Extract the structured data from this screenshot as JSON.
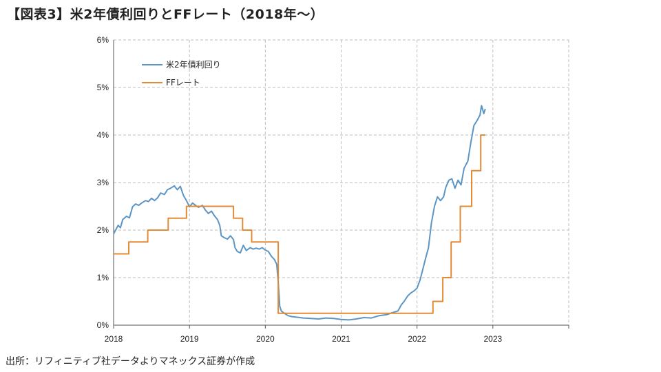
{
  "title": "【図表3】米2年債利回りとFFレート（2018年～）",
  "source": "出所：リフィニティブ社データよりマネックス証券が作成",
  "chart_data": {
    "type": "line",
    "xlim": [
      2018,
      2024
    ],
    "ylim": [
      0,
      6
    ],
    "x_ticks": [
      "2018",
      "2019",
      "2020",
      "2021",
      "2022",
      "2023"
    ],
    "y_ticks": [
      "0%",
      "1%",
      "2%",
      "3%",
      "4%",
      "5%",
      "6%"
    ],
    "grid": true,
    "legend_position": "top-left",
    "series": [
      {
        "name": "米2年債利回り",
        "color": "#5b95c6",
        "points": [
          [
            2018.0,
            1.92
          ],
          [
            2018.03,
            2.01
          ],
          [
            2018.06,
            2.1
          ],
          [
            2018.09,
            2.05
          ],
          [
            2018.12,
            2.22
          ],
          [
            2018.17,
            2.29
          ],
          [
            2018.21,
            2.26
          ],
          [
            2018.25,
            2.49
          ],
          [
            2018.29,
            2.55
          ],
          [
            2018.33,
            2.52
          ],
          [
            2018.37,
            2.57
          ],
          [
            2018.42,
            2.62
          ],
          [
            2018.46,
            2.6
          ],
          [
            2018.5,
            2.67
          ],
          [
            2018.54,
            2.62
          ],
          [
            2018.58,
            2.68
          ],
          [
            2018.62,
            2.78
          ],
          [
            2018.67,
            2.75
          ],
          [
            2018.71,
            2.85
          ],
          [
            2018.75,
            2.88
          ],
          [
            2018.8,
            2.93
          ],
          [
            2018.84,
            2.85
          ],
          [
            2018.88,
            2.92
          ],
          [
            2018.92,
            2.73
          ],
          [
            2018.96,
            2.62
          ],
          [
            2019.0,
            2.49
          ],
          [
            2019.04,
            2.57
          ],
          [
            2019.08,
            2.52
          ],
          [
            2019.12,
            2.48
          ],
          [
            2019.17,
            2.52
          ],
          [
            2019.21,
            2.42
          ],
          [
            2019.25,
            2.35
          ],
          [
            2019.29,
            2.4
          ],
          [
            2019.33,
            2.3
          ],
          [
            2019.37,
            2.22
          ],
          [
            2019.4,
            2.1
          ],
          [
            2019.42,
            1.88
          ],
          [
            2019.46,
            1.84
          ],
          [
            2019.5,
            1.81
          ],
          [
            2019.54,
            1.88
          ],
          [
            2019.58,
            1.8
          ],
          [
            2019.6,
            1.63
          ],
          [
            2019.63,
            1.55
          ],
          [
            2019.67,
            1.52
          ],
          [
            2019.71,
            1.68
          ],
          [
            2019.75,
            1.57
          ],
          [
            2019.8,
            1.63
          ],
          [
            2019.84,
            1.6
          ],
          [
            2019.88,
            1.62
          ],
          [
            2019.92,
            1.6
          ],
          [
            2019.96,
            1.63
          ],
          [
            2020.0,
            1.58
          ],
          [
            2020.04,
            1.55
          ],
          [
            2020.08,
            1.45
          ],
          [
            2020.12,
            1.38
          ],
          [
            2020.15,
            1.28
          ],
          [
            2020.17,
            0.9
          ],
          [
            2020.19,
            0.4
          ],
          [
            2020.21,
            0.3
          ],
          [
            2020.25,
            0.25
          ],
          [
            2020.3,
            0.2
          ],
          [
            2020.35,
            0.18
          ],
          [
            2020.4,
            0.17
          ],
          [
            2020.5,
            0.15
          ],
          [
            2020.6,
            0.14
          ],
          [
            2020.7,
            0.13
          ],
          [
            2020.8,
            0.15
          ],
          [
            2020.9,
            0.14
          ],
          [
            2021.0,
            0.12
          ],
          [
            2021.1,
            0.11
          ],
          [
            2021.2,
            0.13
          ],
          [
            2021.3,
            0.16
          ],
          [
            2021.4,
            0.15
          ],
          [
            2021.5,
            0.2
          ],
          [
            2021.6,
            0.22
          ],
          [
            2021.67,
            0.26
          ],
          [
            2021.75,
            0.3
          ],
          [
            2021.79,
            0.42
          ],
          [
            2021.83,
            0.5
          ],
          [
            2021.88,
            0.62
          ],
          [
            2021.92,
            0.68
          ],
          [
            2021.96,
            0.72
          ],
          [
            2022.0,
            0.78
          ],
          [
            2022.04,
            0.95
          ],
          [
            2022.08,
            1.2
          ],
          [
            2022.12,
            1.45
          ],
          [
            2022.15,
            1.62
          ],
          [
            2022.19,
            2.15
          ],
          [
            2022.23,
            2.5
          ],
          [
            2022.27,
            2.7
          ],
          [
            2022.31,
            2.62
          ],
          [
            2022.35,
            2.7
          ],
          [
            2022.38,
            2.9
          ],
          [
            2022.42,
            3.05
          ],
          [
            2022.46,
            3.08
          ],
          [
            2022.5,
            2.88
          ],
          [
            2022.54,
            3.05
          ],
          [
            2022.58,
            2.95
          ],
          [
            2022.62,
            3.3
          ],
          [
            2022.67,
            3.45
          ],
          [
            2022.71,
            3.85
          ],
          [
            2022.75,
            4.2
          ],
          [
            2022.79,
            4.3
          ],
          [
            2022.83,
            4.42
          ],
          [
            2022.85,
            4.62
          ],
          [
            2022.88,
            4.45
          ],
          [
            2022.9,
            4.55
          ]
        ]
      },
      {
        "name": "FFレート",
        "color": "#e38a35",
        "points": [
          [
            2018.0,
            1.5
          ],
          [
            2018.2,
            1.5
          ],
          [
            2018.2,
            1.75
          ],
          [
            2018.45,
            1.75
          ],
          [
            2018.45,
            2.0
          ],
          [
            2018.72,
            2.0
          ],
          [
            2018.72,
            2.25
          ],
          [
            2018.96,
            2.25
          ],
          [
            2018.96,
            2.5
          ],
          [
            2019.58,
            2.5
          ],
          [
            2019.58,
            2.25
          ],
          [
            2019.7,
            2.25
          ],
          [
            2019.7,
            2.0
          ],
          [
            2019.82,
            2.0
          ],
          [
            2019.82,
            1.75
          ],
          [
            2020.17,
            1.75
          ],
          [
            2020.17,
            0.25
          ],
          [
            2022.21,
            0.25
          ],
          [
            2022.21,
            0.5
          ],
          [
            2022.34,
            0.5
          ],
          [
            2022.34,
            1.0
          ],
          [
            2022.45,
            1.0
          ],
          [
            2022.45,
            1.75
          ],
          [
            2022.57,
            1.75
          ],
          [
            2022.57,
            2.5
          ],
          [
            2022.72,
            2.5
          ],
          [
            2022.72,
            3.25
          ],
          [
            2022.84,
            3.25
          ],
          [
            2022.84,
            4.0
          ],
          [
            2022.9,
            4.0
          ]
        ]
      }
    ]
  }
}
